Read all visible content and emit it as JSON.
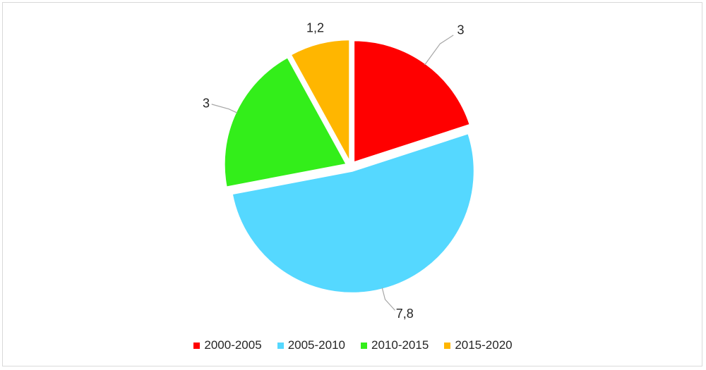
{
  "chart_data": {
    "type": "pie",
    "categories": [
      "2000-2005",
      "2005-2010",
      "2010-2015",
      "2015-2020"
    ],
    "values": [
      3,
      7.8,
      3,
      1.2
    ],
    "value_labels": [
      "3",
      "7,8",
      "3",
      "1,2"
    ],
    "colors": [
      "#ff0000",
      "#55d8ff",
      "#33ee1a",
      "#ffb600"
    ],
    "title": "",
    "legend_position": "bottom",
    "exploded": true,
    "start_angle_deg": 0,
    "direction": "clockwise"
  },
  "legend": {
    "items": [
      {
        "label": "2000-2005",
        "color": "#ff0000"
      },
      {
        "label": "2005-2010",
        "color": "#55d8ff"
      },
      {
        "label": "2010-2015",
        "color": "#33ee1a"
      },
      {
        "label": "2015-2020",
        "color": "#ffb600"
      }
    ]
  }
}
